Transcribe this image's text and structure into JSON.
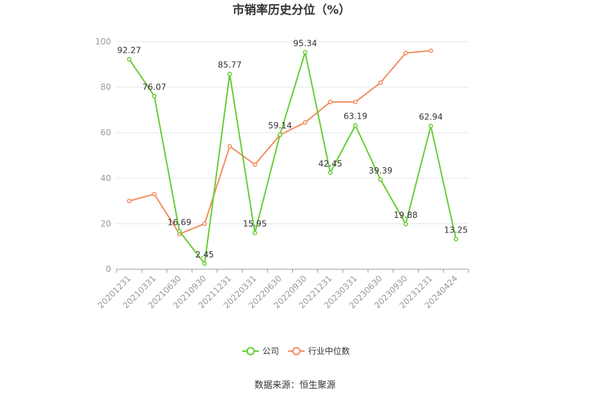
{
  "chart_data": {
    "type": "line",
    "title": "市销率历史分位（%）",
    "xlabel": "",
    "ylabel": "",
    "ylim": [
      0,
      100
    ],
    "yticks": [
      0,
      20,
      40,
      60,
      80,
      100
    ],
    "grid": true,
    "legend_position": "bottom",
    "categories": [
      "20201231",
      "20210331",
      "20210630",
      "20210930",
      "20211231",
      "20220331",
      "20220630",
      "20220930",
      "20221231",
      "20230331",
      "20230630",
      "20230930",
      "20231231",
      "20240424"
    ],
    "series": [
      {
        "name": "公司",
        "color": "#66cc33",
        "values": [
          92.27,
          76.07,
          16.69,
          2.45,
          85.77,
          15.95,
          59.14,
          95.34,
          42.45,
          63.19,
          39.39,
          19.88,
          62.94,
          13.25
        ],
        "labels": [
          "92.27",
          "76.07",
          "16.69",
          "2.45",
          "85.77",
          "15.95",
          "59.14",
          "95.34",
          "42.45",
          "63.19",
          "39.39",
          "19.88",
          "62.94",
          "13.25"
        ]
      },
      {
        "name": "行业中位数",
        "color": "#f28c5c",
        "values": [
          30,
          33,
          15.5,
          20,
          54,
          46,
          59,
          64.5,
          73.5,
          73.5,
          82,
          95,
          96,
          null
        ]
      }
    ]
  },
  "source_text": "数据来源：恒生聚源"
}
